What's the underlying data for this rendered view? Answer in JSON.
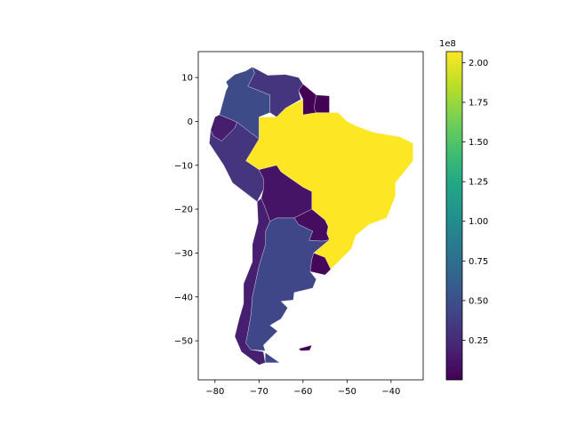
{
  "chart_data": {
    "type": "choropleth",
    "xlim": [
      -83.8,
      -32.7
    ],
    "ylim": [
      -58.9,
      15.9
    ],
    "x_ticks": [
      "−80",
      "−70",
      "−60",
      "−50",
      "−40"
    ],
    "x_tick_values": [
      -80,
      -70,
      -60,
      -50,
      -40
    ],
    "y_ticks": [
      "10",
      "0",
      "−10",
      "−20",
      "−30",
      "−40",
      "−50"
    ],
    "y_tick_values": [
      10,
      0,
      -10,
      -20,
      -30,
      -40,
      -50
    ],
    "colormap": "viridis",
    "colorbar": {
      "range": [
        3e-05,
        2.07
      ],
      "offset_label": "1e8",
      "ticks": [
        "0.25",
        "0.50",
        "0.75",
        "1.00",
        "1.25",
        "1.50",
        "1.75",
        "2.00"
      ],
      "tick_values": [
        0.25,
        0.5,
        0.75,
        1.0,
        1.25,
        1.5,
        1.75,
        2.0
      ]
    },
    "regions": [
      {
        "value": 2.07,
        "poly": [
          [
            -74,
            -7.5
          ],
          [
            -70,
            -4
          ],
          [
            -70,
            1
          ],
          [
            -66,
            1
          ],
          [
            -64,
            3
          ],
          [
            -60,
            5
          ],
          [
            -57,
            2
          ],
          [
            -52,
            2
          ],
          [
            -50,
            0
          ],
          [
            -48,
            -1
          ],
          [
            -44,
            -2.5
          ],
          [
            -38,
            -3.5
          ],
          [
            -35,
            -5
          ],
          [
            -35,
            -9
          ],
          [
            -39,
            -14
          ],
          [
            -39,
            -17
          ],
          [
            -41,
            -22
          ],
          [
            -45,
            -23.5
          ],
          [
            -48,
            -26
          ],
          [
            -49,
            -29
          ],
          [
            -53.7,
            -33.7
          ],
          [
            -55,
            -31
          ],
          [
            -57.6,
            -30
          ],
          [
            -54,
            -27
          ],
          [
            -54.6,
            -25.5
          ],
          [
            -54.3,
            -24
          ],
          [
            -55,
            -22.5
          ],
          [
            -58,
            -20
          ],
          [
            -58,
            -16
          ],
          [
            -60,
            -15
          ],
          [
            -65,
            -11.5
          ],
          [
            -66,
            -10
          ],
          [
            -70,
            -11
          ],
          [
            -73,
            -9
          ]
        ]
      },
      {
        "value": 0.477,
        "poly": [
          [
            -77,
            8
          ],
          [
            -77.5,
            9
          ],
          [
            -75.5,
            10.7
          ],
          [
            -73,
            11.5
          ],
          [
            -71.5,
            12.4
          ],
          [
            -71,
            11
          ],
          [
            -72.5,
            8
          ],
          [
            -70,
            7
          ],
          [
            -67.5,
            6
          ],
          [
            -67.5,
            2
          ],
          [
            -70,
            1
          ],
          [
            -70,
            -4
          ],
          [
            -72,
            -2.5
          ],
          [
            -75,
            -0.2
          ],
          [
            -79,
            1.5
          ],
          [
            -77.5,
            7
          ]
        ]
      },
      {
        "value": 0.31,
        "poly": [
          [
            -71.5,
            12.4
          ],
          [
            -68,
            10.5
          ],
          [
            -64,
            10.7
          ],
          [
            -61,
            10
          ],
          [
            -60,
            8.5
          ],
          [
            -61,
            7
          ],
          [
            -60.5,
            5
          ],
          [
            -64,
            3
          ],
          [
            -66,
            1
          ],
          [
            -67.5,
            2
          ],
          [
            -67.5,
            6
          ],
          [
            -70,
            7
          ],
          [
            -72.5,
            8
          ],
          [
            -71,
            11
          ]
        ]
      },
      {
        "value": 0.0078,
        "poly": [
          [
            -60,
            8.5
          ],
          [
            -57,
            6
          ],
          [
            -57.5,
            3
          ],
          [
            -57,
            2
          ],
          [
            -60,
            1.5
          ],
          [
            -60,
            5
          ],
          [
            -61,
            7
          ]
        ]
      },
      {
        "value": 0.0059,
        "poly": [
          [
            -57,
            6
          ],
          [
            -54,
            5.8
          ],
          [
            -54,
            2
          ],
          [
            -57,
            2
          ],
          [
            -57.5,
            3
          ]
        ]
      },
      {
        "value": 0.163,
        "poly": [
          [
            -80.3,
            -3.4
          ],
          [
            -81,
            -2
          ],
          [
            -80,
            1
          ],
          [
            -79,
            1.5
          ],
          [
            -75,
            -0.2
          ],
          [
            -75.5,
            -1.5
          ],
          [
            -78.5,
            -4.5
          ]
        ]
      },
      {
        "value": 0.31,
        "poly": [
          [
            -81,
            -2
          ],
          [
            -80.3,
            -3.4
          ],
          [
            -78.5,
            -4.5
          ],
          [
            -75.5,
            -1.5
          ],
          [
            -75,
            -0.2
          ],
          [
            -72,
            -2.5
          ],
          [
            -70,
            -4
          ],
          [
            -73,
            -9
          ],
          [
            -70,
            -11
          ],
          [
            -69,
            -13
          ],
          [
            -69,
            -15.5
          ],
          [
            -70.4,
            -18.3
          ],
          [
            -76,
            -14
          ],
          [
            -78,
            -10
          ],
          [
            -81.3,
            -5
          ]
        ]
      },
      {
        "value": 0.11,
        "poly": [
          [
            -69,
            -13
          ],
          [
            -70,
            -11
          ],
          [
            -66,
            -10
          ],
          [
            -65,
            -11.5
          ],
          [
            -60,
            -15
          ],
          [
            -58,
            -16
          ],
          [
            -58,
            -20
          ],
          [
            -62,
            -22
          ],
          [
            -66,
            -22
          ],
          [
            -67.5,
            -22.8
          ],
          [
            -68.5,
            -20
          ],
          [
            -69.5,
            -17.5
          ],
          [
            -69,
            -15.5
          ]
        ]
      },
      {
        "value": 0.069,
        "poly": [
          [
            -58,
            -20
          ],
          [
            -55,
            -22.5
          ],
          [
            -54.3,
            -24
          ],
          [
            -54.6,
            -25.5
          ],
          [
            -54,
            -27
          ],
          [
            -55.7,
            -27.3
          ],
          [
            -58.6,
            -27.1
          ],
          [
            -57.8,
            -25
          ],
          [
            -61,
            -23.5
          ],
          [
            -62,
            -22
          ]
        ]
      },
      {
        "value": 0.034,
        "poly": [
          [
            -57.6,
            -30
          ],
          [
            -55,
            -31
          ],
          [
            -53.7,
            -33.7
          ],
          [
            -55,
            -35
          ],
          [
            -58.4,
            -34.2
          ],
          [
            -58,
            -31.5
          ]
        ]
      },
      {
        "value": 0.178,
        "poly": [
          [
            -70.4,
            -18.3
          ],
          [
            -69.5,
            -17.5
          ],
          [
            -68.5,
            -20
          ],
          [
            -67.5,
            -22.8
          ],
          [
            -68.5,
            -25
          ],
          [
            -68.5,
            -28
          ],
          [
            -70,
            -33
          ],
          [
            -71.5,
            -40
          ],
          [
            -71.8,
            -44
          ],
          [
            -72.5,
            -48
          ],
          [
            -73,
            -50.5
          ],
          [
            -71.9,
            -52
          ],
          [
            -69,
            -52.5
          ],
          [
            -68.6,
            -55
          ],
          [
            -70,
            -55.5
          ],
          [
            -74,
            -52.5
          ],
          [
            -75.5,
            -49
          ],
          [
            -74.5,
            -45
          ],
          [
            -73.5,
            -41.5
          ],
          [
            -73.5,
            -37
          ],
          [
            -71.5,
            -32
          ],
          [
            -71.5,
            -28
          ],
          [
            -70.2,
            -23
          ]
        ]
      },
      {
        "value": 0.44,
        "poly": [
          [
            -67.5,
            -22.8
          ],
          [
            -66,
            -22
          ],
          [
            -62,
            -22
          ],
          [
            -61,
            -23.5
          ],
          [
            -57.8,
            -25
          ],
          [
            -58.6,
            -27.1
          ],
          [
            -55.7,
            -27.3
          ],
          [
            -54,
            -27
          ],
          [
            -57.6,
            -30
          ],
          [
            -58,
            -31.5
          ],
          [
            -58.4,
            -34.2
          ],
          [
            -57,
            -36
          ],
          [
            -57.8,
            -38
          ],
          [
            -62,
            -39
          ],
          [
            -62.2,
            -40.7
          ],
          [
            -65,
            -41
          ],
          [
            -63.5,
            -42.5
          ],
          [
            -65,
            -45
          ],
          [
            -67.5,
            -46.5
          ],
          [
            -65.8,
            -47.8
          ],
          [
            -69,
            -51
          ],
          [
            -68.6,
            -52.3
          ],
          [
            -71.9,
            -52
          ],
          [
            -73,
            -50.5
          ],
          [
            -72.5,
            -48
          ],
          [
            -71.8,
            -44
          ],
          [
            -71.5,
            -40
          ],
          [
            -70,
            -33
          ],
          [
            -68.5,
            -28
          ],
          [
            -68.5,
            -25
          ]
        ]
      },
      {
        "value": 0.44,
        "poly": [
          [
            -68.6,
            -52.7
          ],
          [
            -65.3,
            -55
          ],
          [
            -68.6,
            -55
          ]
        ]
      },
      {
        "value": 3e-05,
        "poly": [
          [
            -61,
            -51.8
          ],
          [
            -58,
            -51
          ],
          [
            -58.5,
            -52.2
          ],
          [
            -60.5,
            -52.3
          ]
        ]
      }
    ]
  }
}
